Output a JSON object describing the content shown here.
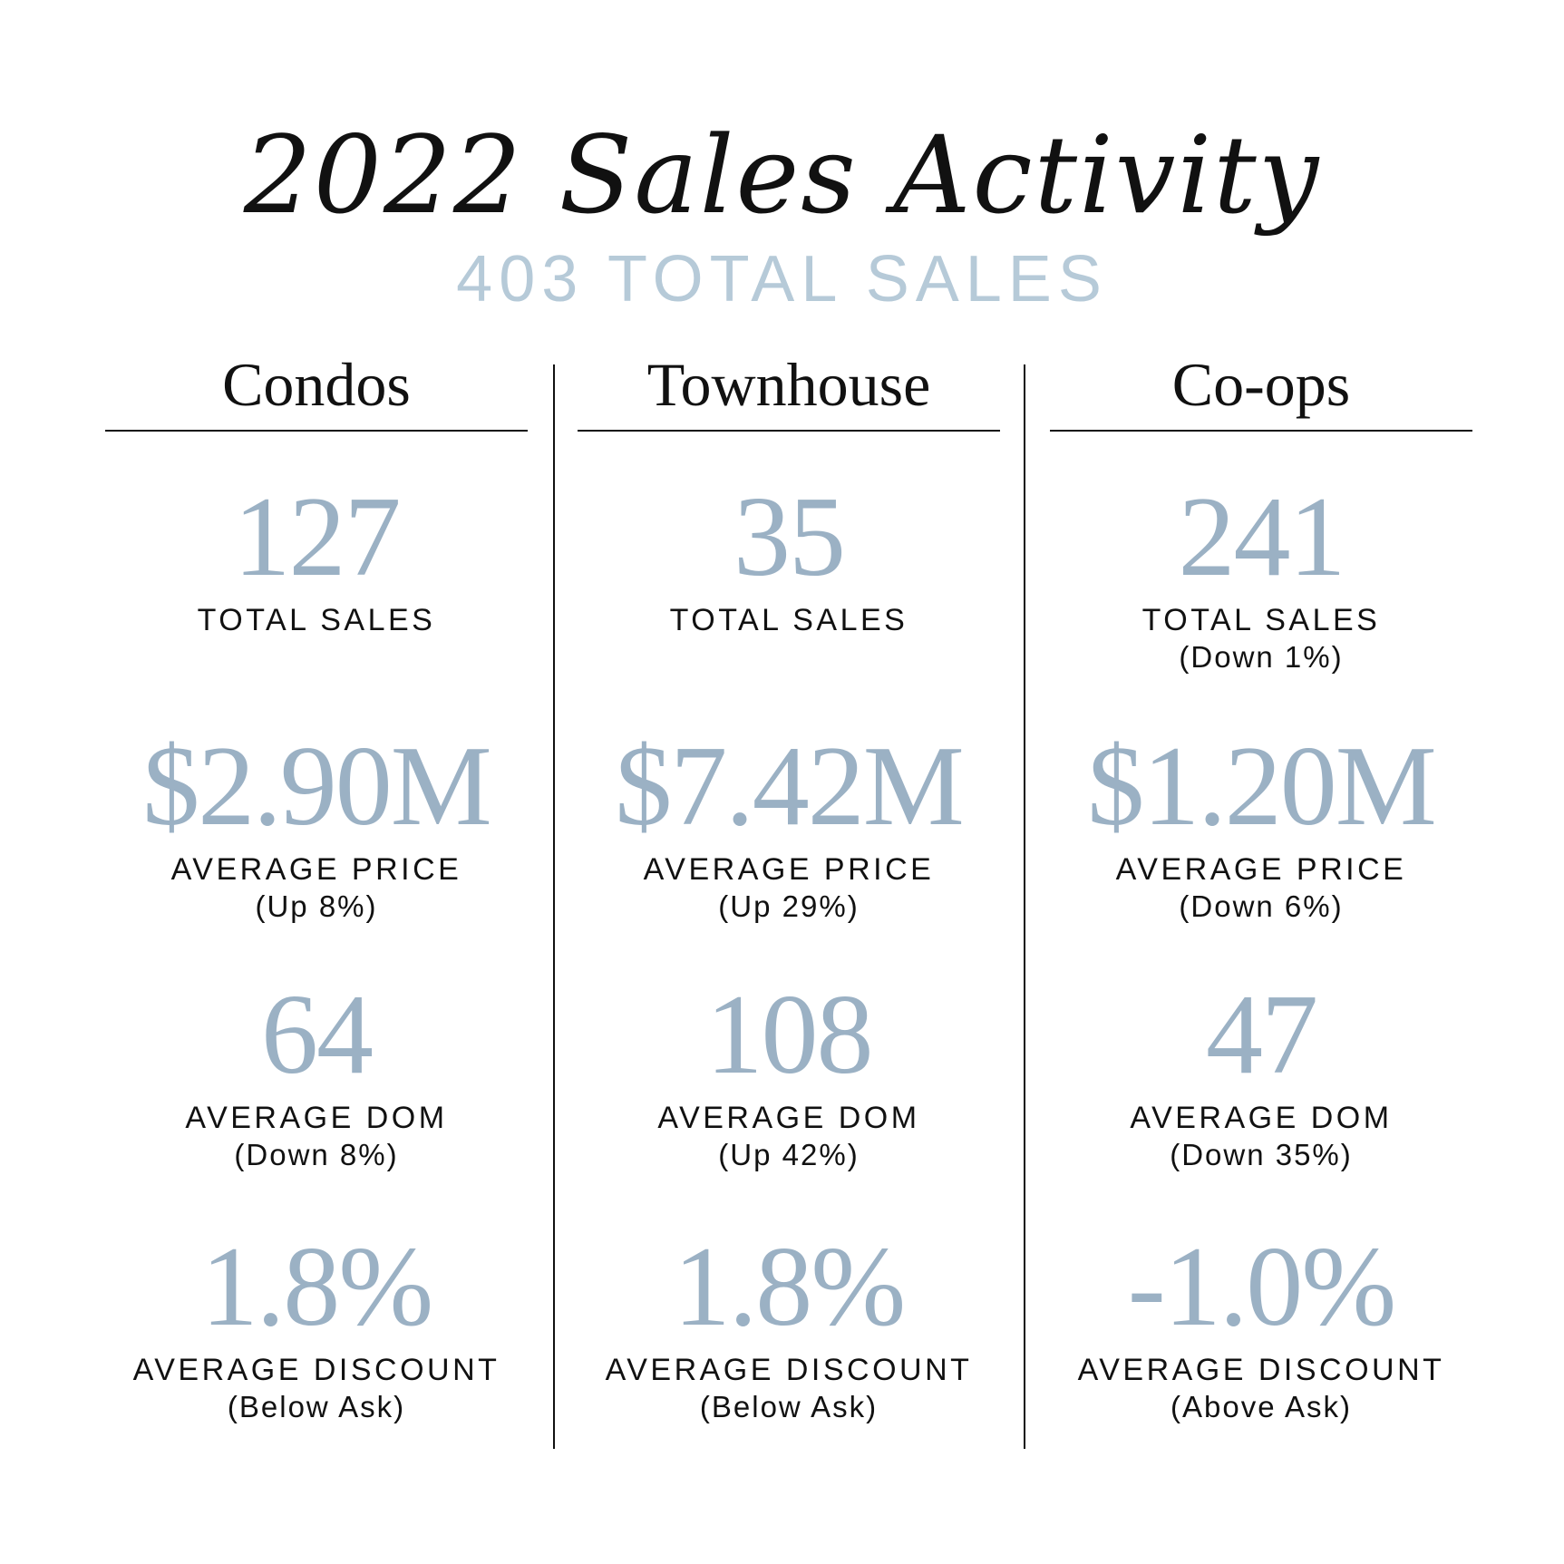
{
  "title": "2022 Sales Activity",
  "subtitle": "403 TOTAL SALES",
  "colors": {
    "accent": "#9bb1c4",
    "subtitle": "#b6cad8",
    "text": "#111111"
  },
  "columns": [
    {
      "name": "Condos",
      "metrics": [
        {
          "value": "127",
          "label": "TOTAL SALES",
          "note": ""
        },
        {
          "value": "$2.90M",
          "label": "AVERAGE PRICE",
          "note": "(Up 8%)"
        },
        {
          "value": "64",
          "label": "AVERAGE DOM",
          "note": "(Down 8%)"
        },
        {
          "value": "1.8%",
          "label": "AVERAGE DISCOUNT",
          "note": "(Below Ask)"
        }
      ]
    },
    {
      "name": "Townhouse",
      "metrics": [
        {
          "value": "35",
          "label": "TOTAL SALES",
          "note": ""
        },
        {
          "value": "$7.42M",
          "label": "AVERAGE PRICE",
          "note": "(Up 29%)"
        },
        {
          "value": "108",
          "label": "AVERAGE DOM",
          "note": "(Up 42%)"
        },
        {
          "value": "1.8%",
          "label": "AVERAGE DISCOUNT",
          "note": "(Below Ask)"
        }
      ]
    },
    {
      "name": "Co-ops",
      "metrics": [
        {
          "value": "241",
          "label": "TOTAL SALES",
          "note": "(Down 1%)"
        },
        {
          "value": "$1.20M",
          "label": "AVERAGE PRICE",
          "note": "(Down 6%)"
        },
        {
          "value": "47",
          "label": "AVERAGE DOM",
          "note": "(Down 35%)"
        },
        {
          "value": "-1.0%",
          "label": "AVERAGE DISCOUNT",
          "note": "(Above Ask)"
        }
      ]
    }
  ]
}
